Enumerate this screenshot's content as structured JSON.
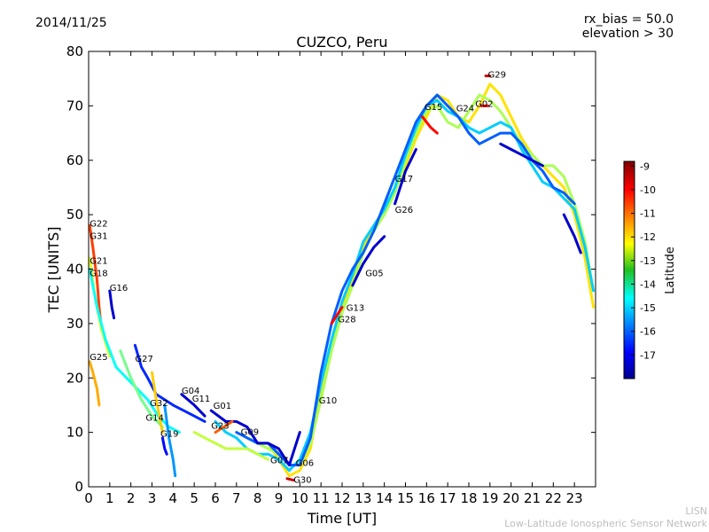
{
  "header": {
    "date": "2014/11/25",
    "rx_bias": "rx_bias = 50.0",
    "elevation": "elevation > 30"
  },
  "footer": {
    "credit_line1": "LISN",
    "credit_line2": "Low-Latitude Ionospheric Sensor Network"
  },
  "chart_data": {
    "type": "line",
    "title": "CUZCO, Peru",
    "xlabel": "Time [UT]",
    "ylabel": "TEC [UNITS]",
    "xlim": [
      0,
      24
    ],
    "ylim": [
      0,
      80
    ],
    "xticks": [
      "0",
      "1",
      "2",
      "3",
      "4",
      "5",
      "6",
      "7",
      "8",
      "9",
      "10",
      "11",
      "12",
      "13",
      "14",
      "15",
      "16",
      "17",
      "18",
      "19",
      "20",
      "21",
      "22",
      "23"
    ],
    "yticks": [
      "0",
      "10",
      "20",
      "30",
      "40",
      "50",
      "60",
      "70",
      "80"
    ],
    "colorbar": {
      "label": "Latitude",
      "range": [
        -18,
        -8.8
      ],
      "ticks": [
        "-9",
        "-10",
        "-11",
        "-12",
        "-13",
        "-14",
        "-15",
        "-16",
        "-17"
      ]
    },
    "satellite_labels": [
      {
        "label": "G22",
        "x": 0.05,
        "y": 48.3
      },
      {
        "label": "G31",
        "x": 0.05,
        "y": 46.0
      },
      {
        "label": "G21",
        "x": 0.05,
        "y": 41.5
      },
      {
        "label": "G18",
        "x": 0.05,
        "y": 39.2
      },
      {
        "label": "G16",
        "x": 1.0,
        "y": 36.5
      },
      {
        "label": "G25",
        "x": 0.05,
        "y": 23.8
      },
      {
        "label": "G27",
        "x": 2.2,
        "y": 23.5
      },
      {
        "label": "G04",
        "x": 4.4,
        "y": 17.6
      },
      {
        "label": "G11",
        "x": 4.9,
        "y": 16.1
      },
      {
        "label": "G32",
        "x": 2.9,
        "y": 15.3
      },
      {
        "label": "G01",
        "x": 5.9,
        "y": 14.8
      },
      {
        "label": "G14",
        "x": 2.7,
        "y": 12.6
      },
      {
        "label": "G23",
        "x": 5.8,
        "y": 11.2
      },
      {
        "label": "G09",
        "x": 7.2,
        "y": 10.0
      },
      {
        "label": "G19",
        "x": 3.4,
        "y": 9.7
      },
      {
        "label": "G07",
        "x": 8.6,
        "y": 4.8
      },
      {
        "label": "G06",
        "x": 9.8,
        "y": 4.3
      },
      {
        "label": "G30",
        "x": 9.7,
        "y": 1.2
      },
      {
        "label": "G10",
        "x": 10.9,
        "y": 15.8
      },
      {
        "label": "G28",
        "x": 11.8,
        "y": 30.7
      },
      {
        "label": "G13",
        "x": 12.2,
        "y": 32.8
      },
      {
        "label": "G05",
        "x": 13.1,
        "y": 39.2
      },
      {
        "label": "G26",
        "x": 14.5,
        "y": 50.8
      },
      {
        "label": "G17",
        "x": 14.5,
        "y": 56.5
      },
      {
        "label": "G15",
        "x": 15.9,
        "y": 69.7
      },
      {
        "label": "G24",
        "x": 17.4,
        "y": 69.5
      },
      {
        "label": "G02",
        "x": 18.3,
        "y": 70.3
      },
      {
        "label": "G29",
        "x": 18.9,
        "y": 75.7
      }
    ],
    "series": [
      {
        "lat": -12.0,
        "points": [
          [
            8.5,
            8
          ],
          [
            9.0,
            5
          ],
          [
            9.5,
            2
          ],
          [
            10.0,
            3
          ],
          [
            10.5,
            7
          ],
          [
            11.0,
            18
          ],
          [
            11.5,
            26
          ],
          [
            12.0,
            33
          ],
          [
            12.5,
            38
          ],
          [
            13.0,
            44
          ],
          [
            13.5,
            48
          ],
          [
            14.0,
            51
          ],
          [
            14.5,
            55
          ],
          [
            15.0,
            59
          ],
          [
            15.5,
            64
          ],
          [
            16.0,
            68
          ],
          [
            16.5,
            72
          ],
          [
            17.0,
            71
          ],
          [
            17.5,
            68
          ],
          [
            18.0,
            67
          ],
          [
            18.5,
            70
          ],
          [
            19.0,
            74
          ],
          [
            19.5,
            72
          ],
          [
            20.0,
            68
          ],
          [
            20.5,
            64
          ],
          [
            21.0,
            61
          ],
          [
            21.5,
            59
          ],
          [
            22.0,
            57
          ],
          [
            22.5,
            55
          ],
          [
            23.0,
            50
          ],
          [
            23.5,
            42
          ],
          [
            23.9,
            33
          ]
        ]
      },
      {
        "lat": -13.0,
        "points": [
          [
            8.0,
            8
          ],
          [
            8.5,
            7
          ],
          [
            9.0,
            6
          ],
          [
            9.5,
            4
          ],
          [
            10.0,
            4
          ],
          [
            10.5,
            8
          ],
          [
            11.0,
            16
          ],
          [
            11.5,
            25
          ],
          [
            12.0,
            32
          ],
          [
            12.5,
            37
          ],
          [
            13.0,
            43
          ],
          [
            13.5,
            47
          ],
          [
            14.0,
            50
          ],
          [
            14.5,
            54
          ],
          [
            15.0,
            60
          ],
          [
            15.5,
            65
          ],
          [
            16.0,
            69
          ],
          [
            16.5,
            70
          ],
          [
            17.0,
            67
          ],
          [
            17.5,
            66
          ],
          [
            18.0,
            69
          ],
          [
            18.5,
            72
          ],
          [
            19.0,
            71
          ],
          [
            19.5,
            69
          ],
          [
            20.0,
            66
          ],
          [
            20.5,
            63
          ],
          [
            21.0,
            61
          ],
          [
            21.5,
            59
          ],
          [
            22.0,
            59
          ],
          [
            22.5,
            57
          ],
          [
            23.0,
            52
          ],
          [
            23.5,
            45
          ],
          [
            23.9,
            36
          ]
        ]
      },
      {
        "lat": -15.0,
        "points": [
          [
            6.0,
            12
          ],
          [
            6.5,
            10
          ],
          [
            7.0,
            9
          ],
          [
            7.5,
            7
          ],
          [
            8.0,
            6
          ],
          [
            8.5,
            6
          ],
          [
            9.0,
            5
          ],
          [
            9.5,
            3
          ],
          [
            10.0,
            5
          ],
          [
            10.5,
            10
          ],
          [
            11.0,
            19
          ],
          [
            11.5,
            27
          ],
          [
            12.0,
            34
          ],
          [
            12.5,
            39
          ],
          [
            13.0,
            45
          ],
          [
            13.5,
            48
          ],
          [
            14.0,
            51
          ],
          [
            14.5,
            55
          ],
          [
            15.0,
            61
          ],
          [
            15.5,
            66
          ],
          [
            16.0,
            70
          ],
          [
            16.5,
            71
          ],
          [
            17.0,
            69
          ],
          [
            17.5,
            68
          ],
          [
            18.0,
            66
          ],
          [
            18.5,
            65
          ],
          [
            19.0,
            66
          ],
          [
            19.5,
            67
          ],
          [
            20.0,
            66
          ],
          [
            20.5,
            62
          ],
          [
            21.0,
            59
          ],
          [
            21.5,
            56
          ],
          [
            22.0,
            55
          ],
          [
            22.5,
            53
          ],
          [
            23.0,
            51
          ],
          [
            23.5,
            44
          ],
          [
            23.9,
            36
          ]
        ]
      },
      {
        "lat": -16.0,
        "points": [
          [
            7.0,
            10
          ],
          [
            7.5,
            9
          ],
          [
            8.0,
            8
          ],
          [
            8.5,
            8
          ],
          [
            9.0,
            6
          ],
          [
            9.5,
            4
          ],
          [
            10.0,
            4
          ],
          [
            10.5,
            9
          ],
          [
            11.0,
            21
          ],
          [
            11.5,
            30
          ],
          [
            12.0,
            36
          ],
          [
            12.5,
            40
          ],
          [
            13.0,
            43
          ],
          [
            13.5,
            47
          ],
          [
            14.0,
            52
          ],
          [
            14.5,
            57
          ],
          [
            15.0,
            62
          ],
          [
            15.5,
            67
          ],
          [
            16.0,
            70
          ],
          [
            16.5,
            72
          ],
          [
            17.0,
            70
          ],
          [
            17.5,
            68
          ],
          [
            18.0,
            65
          ],
          [
            18.5,
            63
          ],
          [
            19.0,
            64
          ],
          [
            19.5,
            65
          ],
          [
            20.0,
            65
          ],
          [
            20.5,
            63
          ],
          [
            21.0,
            60
          ],
          [
            21.5,
            58
          ],
          [
            22.0,
            55
          ],
          [
            22.5,
            54
          ],
          [
            23.0,
            52
          ]
        ]
      },
      {
        "lat": -17.3,
        "points": [
          [
            5.8,
            14
          ],
          [
            6.5,
            12
          ],
          [
            7.0,
            12
          ],
          [
            7.5,
            11
          ],
          [
            8.0,
            8
          ],
          [
            8.5,
            8
          ],
          [
            9.0,
            7
          ],
          [
            9.5,
            4
          ],
          [
            10.0,
            10
          ]
        ]
      },
      {
        "lat": -17.3,
        "points": [
          [
            12.5,
            37
          ],
          [
            13.0,
            41
          ],
          [
            13.5,
            44
          ],
          [
            14.0,
            46
          ]
        ]
      },
      {
        "lat": -17.3,
        "points": [
          [
            14.5,
            52
          ],
          [
            15.0,
            58
          ],
          [
            15.5,
            62
          ]
        ]
      },
      {
        "lat": -17.3,
        "points": [
          [
            19.5,
            63
          ],
          [
            20.0,
            62
          ],
          [
            20.5,
            61
          ],
          [
            21.0,
            60
          ],
          [
            21.5,
            59
          ]
        ]
      },
      {
        "lat": -17.3,
        "points": [
          [
            22.5,
            50
          ],
          [
            23.0,
            46
          ],
          [
            23.3,
            43
          ]
        ]
      },
      {
        "lat": -17.3,
        "points": [
          [
            4.4,
            17
          ],
          [
            5.0,
            15
          ],
          [
            5.5,
            13
          ]
        ]
      },
      {
        "lat": -17.3,
        "points": [
          [
            1.0,
            36
          ],
          [
            1.1,
            33
          ],
          [
            1.2,
            31
          ]
        ]
      },
      {
        "lat": -10.0,
        "points": [
          [
            11.5,
            30
          ],
          [
            12.0,
            33
          ]
        ]
      },
      {
        "lat": -10.0,
        "points": [
          [
            15.8,
            68
          ],
          [
            16.2,
            66
          ],
          [
            16.5,
            65
          ]
        ]
      },
      {
        "lat": -10.0,
        "points": [
          [
            18.6,
            70
          ],
          [
            18.9,
            70
          ]
        ]
      },
      {
        "lat": -9.5,
        "points": [
          [
            18.8,
            75.5
          ],
          [
            19.0,
            75.5
          ]
        ]
      },
      {
        "lat": -9.5,
        "points": [
          [
            9.4,
            1.5
          ],
          [
            9.7,
            1.2
          ]
        ]
      },
      {
        "lat": -10.5,
        "points": [
          [
            0.05,
            48
          ],
          [
            0.2,
            44
          ],
          [
            0.4,
            38
          ],
          [
            0.5,
            33
          ],
          [
            0.6,
            29
          ]
        ]
      },
      {
        "lat": -11.5,
        "points": [
          [
            0.05,
            23
          ],
          [
            0.2,
            21
          ],
          [
            0.4,
            18
          ],
          [
            0.5,
            15
          ]
        ]
      },
      {
        "lat": -12.5,
        "points": [
          [
            0.05,
            42
          ],
          [
            0.3,
            35
          ],
          [
            0.6,
            29
          ],
          [
            1.0,
            24
          ]
        ]
      },
      {
        "lat": -14.5,
        "points": [
          [
            0.05,
            40
          ],
          [
            0.4,
            33
          ],
          [
            0.8,
            27
          ],
          [
            1.3,
            22
          ],
          [
            1.8,
            20
          ],
          [
            2.3,
            18
          ],
          [
            2.8,
            16
          ],
          [
            3.3,
            13
          ],
          [
            3.8,
            11
          ],
          [
            4.3,
            10
          ]
        ]
      },
      {
        "lat": -13.5,
        "points": [
          [
            1.5,
            25
          ],
          [
            2.0,
            20
          ],
          [
            2.5,
            16
          ],
          [
            3.0,
            13
          ],
          [
            3.5,
            11
          ]
        ]
      },
      {
        "lat": -16.5,
        "points": [
          [
            2.2,
            26
          ],
          [
            2.5,
            22
          ],
          [
            2.8,
            20
          ],
          [
            3.2,
            17
          ],
          [
            3.6,
            16
          ],
          [
            4.0,
            15
          ],
          [
            4.5,
            14
          ],
          [
            5.0,
            13
          ],
          [
            5.5,
            12
          ]
        ]
      },
      {
        "lat": -11.8,
        "points": [
          [
            3.0,
            21
          ],
          [
            3.2,
            16
          ],
          [
            3.4,
            12
          ],
          [
            3.5,
            10
          ]
        ]
      },
      {
        "lat": -12.8,
        "points": [
          [
            5.0,
            10
          ],
          [
            5.5,
            9
          ],
          [
            6.0,
            8
          ],
          [
            6.5,
            7
          ],
          [
            7.0,
            7
          ],
          [
            7.5,
            7
          ],
          [
            8.0,
            6
          ],
          [
            8.5,
            5
          ]
        ]
      },
      {
        "lat": -10.8,
        "points": [
          [
            6.0,
            10
          ],
          [
            6.4,
            11
          ],
          [
            6.8,
            12
          ]
        ]
      },
      {
        "lat": -15.5,
        "points": [
          [
            3.6,
            15
          ],
          [
            3.8,
            9
          ],
          [
            4.0,
            5
          ],
          [
            4.1,
            2
          ]
        ]
      },
      {
        "lat": -16.8,
        "points": [
          [
            3.5,
            9
          ],
          [
            3.6,
            7
          ],
          [
            3.7,
            6
          ]
        ]
      }
    ]
  }
}
